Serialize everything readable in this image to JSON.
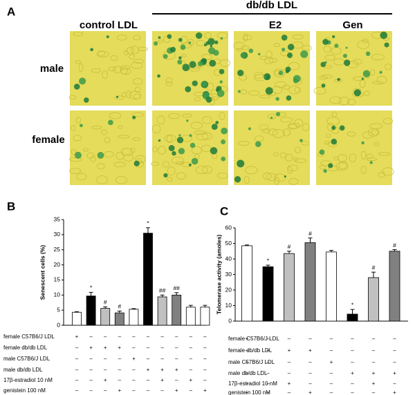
{
  "panel_a": {
    "label": "A",
    "group_header": "db/db LDL",
    "columns": [
      "control LDL",
      "E2",
      "Gen"
    ],
    "rows": [
      "male",
      "female"
    ]
  },
  "chart_data": [
    {
      "type": "bar",
      "label": "B",
      "y_label": "Senescent cells (%)",
      "values": [
        4.3,
        9.7,
        5.6,
        4.1,
        5.3,
        30.5,
        9.4,
        10.0,
        6.0,
        6.0
      ],
      "errors": [
        0.2,
        1.2,
        0.5,
        0.6,
        0.2,
        1.8,
        0.6,
        0.8,
        0.6,
        0.6
      ],
      "colors": [
        "#ffffff",
        "#000000",
        "#c0c0c0",
        "#808080",
        "#ffffff",
        "#000000",
        "#c0c0c0",
        "#808080",
        "#ffffff",
        "#ffffff"
      ],
      "annotations": [
        null,
        "*",
        "#",
        "#",
        null,
        "*",
        "##",
        "##",
        null,
        null
      ],
      "ylim": [
        0,
        35
      ],
      "yticks": [
        0,
        5,
        10,
        15,
        20,
        25,
        30,
        35
      ],
      "conditions": [
        {
          "name": "female C57B6/J LDL",
          "signs": [
            "+",
            "–",
            "–",
            "–",
            "–",
            "–",
            "–",
            "–",
            "–",
            "–"
          ]
        },
        {
          "name": "female db/db LDL",
          "signs": [
            "–",
            "+",
            "+",
            "+",
            "–",
            "–",
            "–",
            "–",
            "–",
            "–"
          ]
        },
        {
          "name": "male C57B6/J LDL",
          "signs": [
            "–",
            "–",
            "–",
            "–",
            "+",
            "–",
            "–",
            "–",
            "–",
            "–"
          ]
        },
        {
          "name": "male db/db LDL",
          "signs": [
            "–",
            "–",
            "–",
            "–",
            "–",
            "+",
            "+",
            "+",
            "–",
            "–"
          ]
        },
        {
          "name": "17β-estradiol 10 nM",
          "signs": [
            "–",
            "–",
            "+",
            "–",
            "–",
            "–",
            "+",
            "–",
            "+",
            "–"
          ]
        },
        {
          "name": "genistein 100 nM",
          "signs": [
            "–",
            "–",
            "–",
            "+",
            "–",
            "–",
            "–",
            "+",
            "–",
            "+"
          ]
        }
      ]
    },
    {
      "type": "bar",
      "label": "C",
      "y_label": "Telomerase activity (amoles)",
      "values": [
        48.5,
        35,
        43.5,
        50.5,
        44.5,
        4.5,
        28,
        45
      ],
      "errors": [
        0.5,
        1,
        1.5,
        3,
        1,
        3,
        3.5,
        1
      ],
      "colors": [
        "#ffffff",
        "#000000",
        "#c0c0c0",
        "#808080",
        "#ffffff",
        "#000000",
        "#c0c0c0",
        "#808080"
      ],
      "annotations": [
        null,
        "*",
        "#",
        "#",
        null,
        "*",
        "#",
        "#"
      ],
      "ylim": [
        0,
        60
      ],
      "yticks": [
        0,
        10,
        20,
        30,
        40,
        50,
        60
      ],
      "conditions": [
        {
          "name": "female C57B6/J LDL",
          "signs": [
            "+",
            "–",
            "–",
            "–",
            "–",
            "–",
            "–",
            "–"
          ]
        },
        {
          "name": "female db/db LDL",
          "signs": [
            "–",
            "+",
            "+",
            "+",
            "–",
            "–",
            "–",
            "–"
          ]
        },
        {
          "name": "male C57B6/J LDL",
          "signs": [
            "–",
            "–",
            "–",
            "–",
            "+",
            "–",
            "–",
            "–"
          ]
        },
        {
          "name": "male db/db LDL",
          "signs": [
            "–",
            "–",
            "–",
            "–",
            "–",
            "+",
            "+",
            "+"
          ]
        },
        {
          "name": "17β-estradiol 10 nM",
          "signs": [
            "–",
            "–",
            "+",
            "–",
            "–",
            "–",
            "+",
            "–"
          ]
        },
        {
          "name": "genistein 100 nM",
          "signs": [
            "–",
            "–",
            "–",
            "+",
            "–",
            "–",
            "–",
            "+"
          ]
        }
      ]
    }
  ]
}
